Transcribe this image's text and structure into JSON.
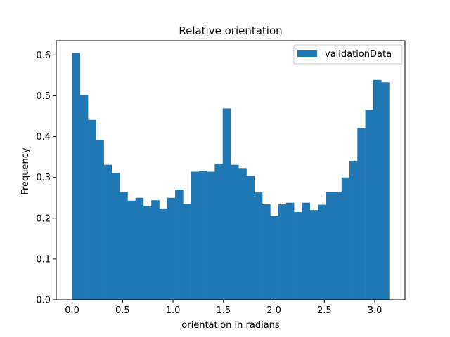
{
  "chart_data": {
    "type": "bar",
    "title": "Relative orientation",
    "xlabel": "orientation in radians",
    "ylabel": "Frequency",
    "xlim": [
      -0.157,
      3.299
    ],
    "ylim": [
      0,
      0.635
    ],
    "xticks": [
      0.0,
      0.5,
      1.0,
      1.5,
      2.0,
      2.5,
      3.0
    ],
    "xtick_labels": [
      "0.0",
      "0.5",
      "1.0",
      "1.5",
      "2.0",
      "2.5",
      "3.0"
    ],
    "yticks": [
      0.0,
      0.1,
      0.2,
      0.3,
      0.4,
      0.5,
      0.6
    ],
    "ytick_labels": [
      "0.0",
      "0.1",
      "0.2",
      "0.3",
      "0.4",
      "0.5",
      "0.6"
    ],
    "grid": false,
    "legend_position": "upper right",
    "bin_range": [
      0,
      3.1416
    ],
    "series": [
      {
        "name": "validationData",
        "color": "#1f77b4",
        "values": [
          0.605,
          0.502,
          0.441,
          0.391,
          0.331,
          0.311,
          0.264,
          0.243,
          0.25,
          0.229,
          0.244,
          0.224,
          0.25,
          0.27,
          0.235,
          0.314,
          0.316,
          0.314,
          0.334,
          0.469,
          0.331,
          0.323,
          0.304,
          0.263,
          0.234,
          0.205,
          0.234,
          0.238,
          0.215,
          0.238,
          0.22,
          0.233,
          0.264,
          0.264,
          0.3,
          0.339,
          0.421,
          0.466,
          0.539,
          0.533
        ]
      }
    ]
  }
}
